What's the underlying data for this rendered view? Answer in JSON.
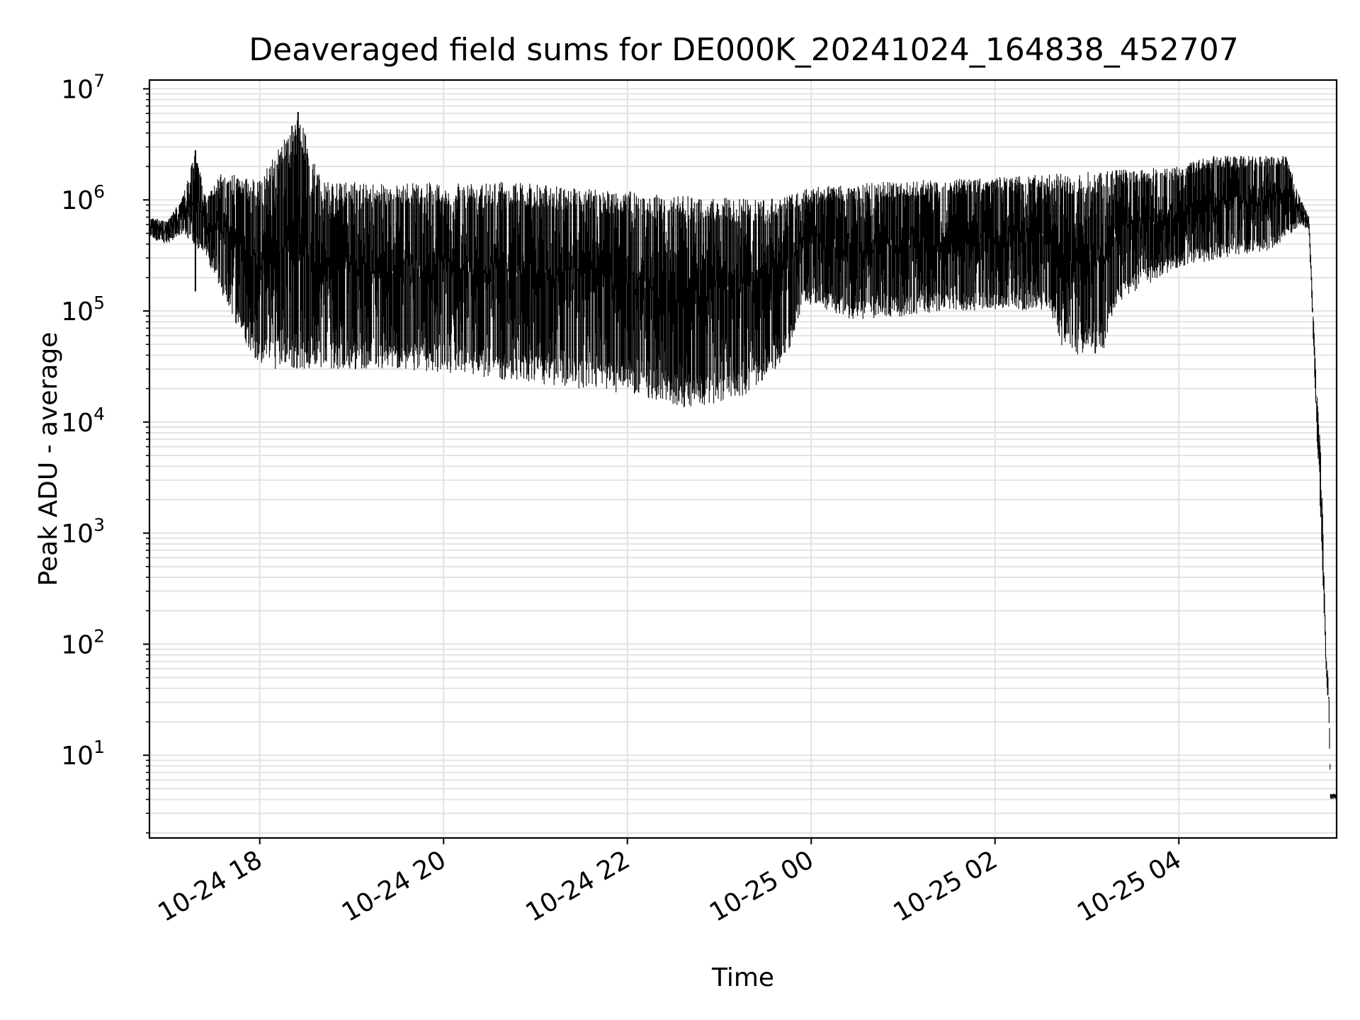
{
  "chart_data": {
    "type": "line",
    "title": "Deaveraged field sums for DE000K_20241024_164838_452707",
    "xlabel": "Time",
    "ylabel": "Peak ADU - average",
    "y_scale": "log",
    "ylim": [
      1.8,
      12000000
    ],
    "xlim": [
      "2024-10-24 16:48",
      "2024-10-25 05:43"
    ],
    "grid": true,
    "line_color": "#000000",
    "grid_color": "#e3e3e3",
    "x_ticks": [
      {
        "label": "10-24 18",
        "value": "2024-10-24 18:00"
      },
      {
        "label": "10-24 20",
        "value": "2024-10-24 20:00"
      },
      {
        "label": "10-24 22",
        "value": "2024-10-24 22:00"
      },
      {
        "label": "10-25 00",
        "value": "2024-10-25 00:00"
      },
      {
        "label": "10-25 02",
        "value": "2024-10-25 02:00"
      },
      {
        "label": "10-25 04",
        "value": "2024-10-25 04:00"
      }
    ],
    "y_ticks": [
      {
        "base": "10",
        "exp": "1",
        "value": 10
      },
      {
        "base": "10",
        "exp": "2",
        "value": 100
      },
      {
        "base": "10",
        "exp": "3",
        "value": 1000
      },
      {
        "base": "10",
        "exp": "4",
        "value": 10000
      },
      {
        "base": "10",
        "exp": "5",
        "value": 100000
      },
      {
        "base": "10",
        "exp": "6",
        "value": 1000000
      },
      {
        "base": "10",
        "exp": "7",
        "value": 10000000
      }
    ],
    "series": [
      {
        "upper": [
          [
            "2024-10-24 16:48",
            700000
          ],
          [
            "2024-10-24 17:00",
            650000
          ],
          [
            "2024-10-24 17:10",
            1100000
          ],
          [
            "2024-10-24 17:18",
            2800000
          ],
          [
            "2024-10-24 17:25",
            1000000
          ],
          [
            "2024-10-24 17:35",
            1800000
          ],
          [
            "2024-10-24 18:00",
            1500000
          ],
          [
            "2024-10-24 18:25",
            6200000
          ],
          [
            "2024-10-24 18:40",
            1500000
          ],
          [
            "2024-10-24 19:30",
            1400000
          ],
          [
            "2024-10-24 20:30",
            1500000
          ],
          [
            "2024-10-24 21:30",
            1300000
          ],
          [
            "2024-10-24 22:30",
            1100000
          ],
          [
            "2024-10-24 23:30",
            1000000
          ],
          [
            "2024-10-25 00:00",
            1300000
          ],
          [
            "2024-10-25 01:00",
            1500000
          ],
          [
            "2024-10-25 02:00",
            1600000
          ],
          [
            "2024-10-25 03:00",
            1800000
          ],
          [
            "2024-10-25 04:00",
            2000000
          ],
          [
            "2024-10-25 04:20",
            2500000
          ],
          [
            "2024-10-25 05:10",
            2500000
          ],
          [
            "2024-10-25 05:20",
            1000000
          ],
          [
            "2024-10-25 05:25",
            700000
          ],
          [
            "2024-10-25 05:30",
            20000
          ],
          [
            "2024-10-25 05:33",
            4500
          ],
          [
            "2024-10-25 05:36",
            100
          ],
          [
            "2024-10-25 05:38",
            40
          ],
          [
            "2024-10-25 05:39",
            4.5
          ],
          [
            "2024-10-25 05:43",
            4.5
          ]
        ],
        "lower": [
          [
            "2024-10-24 16:48",
            450000
          ],
          [
            "2024-10-24 17:00",
            400000
          ],
          [
            "2024-10-24 17:10",
            500000
          ],
          [
            "2024-10-24 17:25",
            300000
          ],
          [
            "2024-10-24 17:40",
            100000
          ],
          [
            "2024-10-24 18:00",
            30000
          ],
          [
            "2024-10-24 19:00",
            30000
          ],
          [
            "2024-10-24 20:00",
            28000
          ],
          [
            "2024-10-24 21:00",
            22000
          ],
          [
            "2024-10-24 22:00",
            18000
          ],
          [
            "2024-10-24 22:40",
            13000
          ],
          [
            "2024-10-24 23:20",
            17000
          ],
          [
            "2024-10-24 23:45",
            40000
          ],
          [
            "2024-10-24 23:55",
            120000
          ],
          [
            "2024-10-25 00:30",
            80000
          ],
          [
            "2024-10-25 01:30",
            100000
          ],
          [
            "2024-10-25 02:35",
            100000
          ],
          [
            "2024-10-25 02:45",
            40000
          ],
          [
            "2024-10-25 03:10",
            40000
          ],
          [
            "2024-10-25 03:20",
            120000
          ],
          [
            "2024-10-25 04:00",
            250000
          ],
          [
            "2024-10-25 05:00",
            350000
          ],
          [
            "2024-10-25 05:20",
            600000
          ],
          [
            "2024-10-25 05:25",
            500000
          ],
          [
            "2024-10-25 05:30",
            8000
          ],
          [
            "2024-10-25 05:33",
            1000
          ],
          [
            "2024-10-25 05:36",
            60
          ],
          [
            "2024-10-25 05:38",
            20
          ],
          [
            "2024-10-25 05:39",
            4
          ],
          [
            "2024-10-25 05:43",
            4
          ]
        ]
      }
    ]
  }
}
